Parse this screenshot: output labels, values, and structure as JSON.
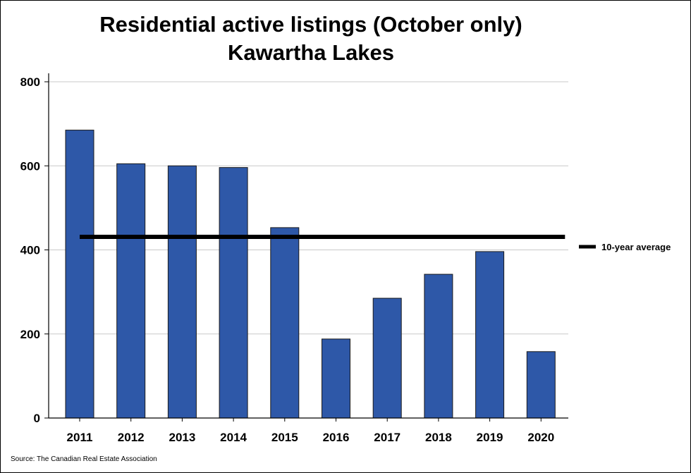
{
  "chart_data": {
    "type": "bar",
    "title": "Residential active listings (October only)",
    "subtitle": "Kawartha Lakes",
    "categories": [
      "2011",
      "2012",
      "2013",
      "2014",
      "2015",
      "2016",
      "2017",
      "2018",
      "2019",
      "2020"
    ],
    "values": [
      685,
      605,
      600,
      596,
      453,
      188,
      285,
      342,
      396,
      158
    ],
    "reference_line": {
      "name": "10-year average",
      "value": 431
    },
    "ylim": [
      0,
      800
    ],
    "yticks": [
      0,
      200,
      400,
      600,
      800
    ],
    "xlabel": "",
    "ylabel": "",
    "grid": true,
    "legend_position": "right",
    "colors": {
      "bar": "#2E58A8",
      "bar_outline": "#1a1a1a",
      "reference_line": "#000000",
      "grid": "#c8c8c8"
    }
  },
  "source": "Source: The Canadian Real Estate Association"
}
